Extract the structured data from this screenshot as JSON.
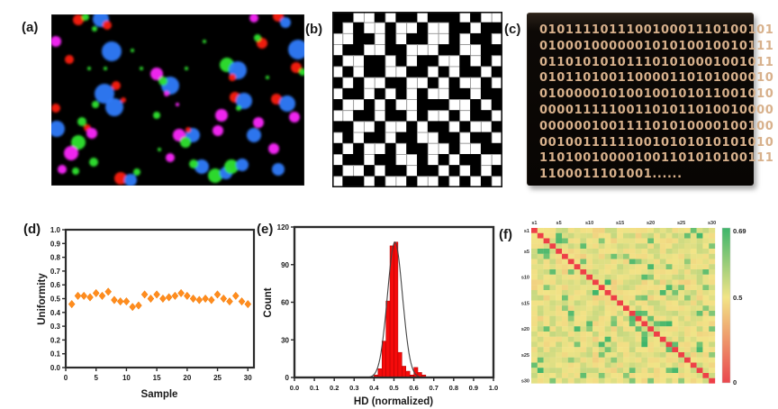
{
  "figure": {
    "background": "#ffffff",
    "panels": {
      "a": {
        "label": "(a)",
        "kind": "fluorescence-microscopy-image",
        "palette": {
          "B": "#2e7bfa",
          "G": "#2ee42e",
          "R": "#fb1f12",
          "M": "#fb28fb",
          "bg": "#000000"
        },
        "blobs": [
          [
            30,
            6,
            6,
            "R"
          ],
          [
            38,
            3,
            4,
            "G"
          ],
          [
            55,
            5,
            9,
            "B"
          ],
          [
            62,
            12,
            5,
            "R"
          ],
          [
            48,
            16,
            3,
            "G"
          ],
          [
            5,
            30,
            6,
            "M"
          ],
          [
            67,
            41,
            11,
            "B"
          ],
          [
            20,
            50,
            5,
            "R"
          ],
          [
            42,
            60,
            2,
            "G"
          ],
          [
            59,
            88,
            11,
            "B"
          ],
          [
            70,
            103,
            10,
            "B"
          ],
          [
            49,
            100,
            4,
            "G"
          ],
          [
            72,
            79,
            5,
            "R"
          ],
          [
            80,
            95,
            3,
            "R"
          ],
          [
            5,
            104,
            5,
            "R"
          ],
          [
            6,
            127,
            9,
            "B"
          ],
          [
            34,
            119,
            5,
            "G"
          ],
          [
            40,
            126,
            4,
            "R"
          ],
          [
            45,
            132,
            6,
            "M"
          ],
          [
            30,
            142,
            8,
            "G"
          ],
          [
            22,
            154,
            8,
            "M"
          ],
          [
            12,
            172,
            5,
            "M"
          ],
          [
            27,
            174,
            4,
            "G"
          ],
          [
            47,
            164,
            5,
            "G"
          ],
          [
            77,
            182,
            7,
            "R"
          ],
          [
            88,
            184,
            7,
            "B"
          ],
          [
            95,
            175,
            4,
            "G"
          ],
          [
            117,
            66,
            7,
            "M"
          ],
          [
            132,
            79,
            10,
            "B"
          ],
          [
            124,
            74,
            5,
            "G"
          ],
          [
            128,
            88,
            3,
            "M"
          ],
          [
            117,
            112,
            4,
            "G"
          ],
          [
            142,
            134,
            7,
            "M"
          ],
          [
            157,
            134,
            8,
            "B"
          ],
          [
            149,
            142,
            6,
            "G"
          ],
          [
            152,
            128,
            3,
            "R"
          ],
          [
            132,
            159,
            5,
            "M"
          ],
          [
            167,
            169,
            8,
            "B"
          ],
          [
            158,
            166,
            5,
            "G"
          ],
          [
            182,
            179,
            8,
            "G"
          ],
          [
            194,
            176,
            7,
            "B"
          ],
          [
            195,
            56,
            8,
            "G"
          ],
          [
            207,
            62,
            10,
            "B"
          ],
          [
            201,
            70,
            4,
            "R"
          ],
          [
            234,
            32,
            6,
            "R"
          ],
          [
            229,
            26,
            4,
            "G"
          ],
          [
            225,
            4,
            5,
            "M"
          ],
          [
            252,
            2,
            6,
            "R"
          ],
          [
            260,
            9,
            6,
            "B"
          ],
          [
            274,
            39,
            11,
            "B"
          ],
          [
            272,
            59,
            6,
            "R"
          ],
          [
            279,
            64,
            4,
            "G"
          ],
          [
            204,
            92,
            6,
            "R"
          ],
          [
            214,
            96,
            9,
            "B"
          ],
          [
            208,
            104,
            3,
            "G"
          ],
          [
            189,
            112,
            7,
            "M"
          ],
          [
            185,
            129,
            6,
            "M"
          ],
          [
            225,
            134,
            8,
            "B"
          ],
          [
            230,
            120,
            6,
            "M"
          ],
          [
            250,
            94,
            6,
            "R"
          ],
          [
            262,
            99,
            9,
            "B"
          ],
          [
            270,
            114,
            6,
            "M"
          ],
          [
            247,
            149,
            6,
            "M"
          ],
          [
            252,
            172,
            7,
            "B"
          ],
          [
            200,
            169,
            8,
            "G"
          ],
          [
            212,
            167,
            7,
            "B"
          ],
          [
            150,
            60,
            2,
            "G"
          ],
          [
            170,
            30,
            2,
            "G"
          ],
          [
            100,
            60,
            2,
            "G"
          ],
          [
            140,
            100,
            2,
            "M"
          ],
          [
            90,
            40,
            2,
            "G"
          ],
          [
            240,
            70,
            2,
            "G"
          ],
          [
            120,
            150,
            2,
            "G"
          ],
          [
            60,
            60,
            2,
            "G"
          ]
        ]
      },
      "b": {
        "label": "(b)",
        "kind": "binary-matrix",
        "cell_on": "#000000",
        "cell_off": "#ffffff",
        "matrix": [
          "1100101101110100",
          "1010010010011011",
          "0011010110010110",
          "0110011000110011",
          "1001101011001010",
          "0101100110101101",
          "1010011001010010",
          "0110101010011011",
          "1001010011100101",
          "0011011010010110",
          "1100100101101001",
          "0101101100110110",
          "1010010110010011",
          "0110110010101100",
          "1001011011010101",
          "0110100100101010"
        ]
      },
      "c": {
        "label": "(c)",
        "kind": "binary-text",
        "text_color": "#d8b18c",
        "bg_color": "#0a0704",
        "lines": [
          "010111101110010001110100101",
          "010001000000101010010010111",
          "011010101011101010001001011",
          "010110100110000110101000010",
          "010000010100100101011001010",
          "000011111001101011010010000",
          "000000100111101010000100100",
          "001001111110010101010101010",
          "110100100001001101010100111",
          "1100011101001......"
        ]
      },
      "d": {
        "label": "(d)"
      },
      "e": {
        "label": "(e)"
      },
      "f": {
        "label": "(f)"
      }
    }
  },
  "chart_data": [
    {
      "id": "d",
      "type": "scatter",
      "xlabel": "Sample",
      "ylabel": "Uniformity",
      "xlim": [
        0,
        31
      ],
      "ylim": [
        0,
        1.0
      ],
      "xtick_labels": [
        "0",
        "5",
        "10",
        "15",
        "20",
        "25",
        "30"
      ],
      "xticks": [
        0,
        5,
        10,
        15,
        20,
        25,
        30
      ],
      "ytick_labels": [
        "0.0",
        "0.1",
        "0.2",
        "0.3",
        "0.4",
        "0.5",
        "0.6",
        "0.7",
        "0.8",
        "0.9",
        "1.0"
      ],
      "yticks": [
        0,
        0.1,
        0.2,
        0.3,
        0.4,
        0.5,
        0.6,
        0.7,
        0.8,
        0.9,
        1.0
      ],
      "marker": "diamond",
      "marker_color": "#ff8c1e",
      "x": [
        1,
        2,
        3,
        4,
        5,
        6,
        7,
        8,
        9,
        10,
        11,
        12,
        13,
        14,
        15,
        16,
        17,
        18,
        19,
        20,
        21,
        22,
        23,
        24,
        25,
        26,
        27,
        28,
        29,
        30
      ],
      "y": [
        0.46,
        0.52,
        0.52,
        0.51,
        0.54,
        0.52,
        0.55,
        0.49,
        0.48,
        0.48,
        0.44,
        0.45,
        0.53,
        0.5,
        0.53,
        0.5,
        0.51,
        0.52,
        0.54,
        0.52,
        0.5,
        0.49,
        0.5,
        0.49,
        0.53,
        0.5,
        0.48,
        0.52,
        0.48,
        0.46
      ]
    },
    {
      "id": "e",
      "type": "bar",
      "subtype": "histogram",
      "xlabel": "HD (normalized)",
      "ylabel": "Count",
      "xlim": [
        0,
        1.0
      ],
      "ylim": [
        0,
        120
      ],
      "xtick_labels": [
        "0.0",
        "0.1",
        "0.2",
        "0.3",
        "0.4",
        "0.5",
        "0.6",
        "0.7",
        "0.8",
        "0.9",
        "1.0"
      ],
      "xticks": [
        0,
        0.1,
        0.2,
        0.3,
        0.4,
        0.5,
        0.6,
        0.7,
        0.8,
        0.9,
        1.0
      ],
      "ytick_labels": [
        "0",
        "30",
        "60",
        "90",
        "120"
      ],
      "yticks": [
        0,
        30,
        60,
        90,
        120
      ],
      "bar_color": "#f40b0b",
      "bin_width": 0.02,
      "bin_left": [
        0.4,
        0.42,
        0.44,
        0.46,
        0.48,
        0.5,
        0.52,
        0.54,
        0.56,
        0.58,
        0.6,
        0.62,
        0.64
      ],
      "counts": [
        2,
        7,
        29,
        61,
        105,
        108,
        20,
        9,
        5,
        2,
        8,
        4,
        2
      ],
      "fit": {
        "type": "gaussian",
        "mu": 0.505,
        "sigma": 0.038,
        "amplitude": 108,
        "color": "#444444"
      }
    },
    {
      "id": "f",
      "type": "heatmap",
      "size": 30,
      "diagonal_value": 0,
      "background_value": 0.5,
      "value_min": 0,
      "value_max": 0.69,
      "tick_labels": [
        "s1",
        "s5",
        "s10",
        "s15",
        "s20",
        "s25",
        "s30"
      ],
      "tick_indices": [
        0,
        4,
        9,
        14,
        19,
        24,
        29
      ],
      "colors": {
        "low": "#e9474e",
        "mid": "#f2e487",
        "high": "#3eb56b",
        "diag": "#ee3f47"
      },
      "colorbar": {
        "max_label": "0.69",
        "mid_label": "0.5",
        "min_label": "0"
      },
      "seed": 20
    }
  ]
}
